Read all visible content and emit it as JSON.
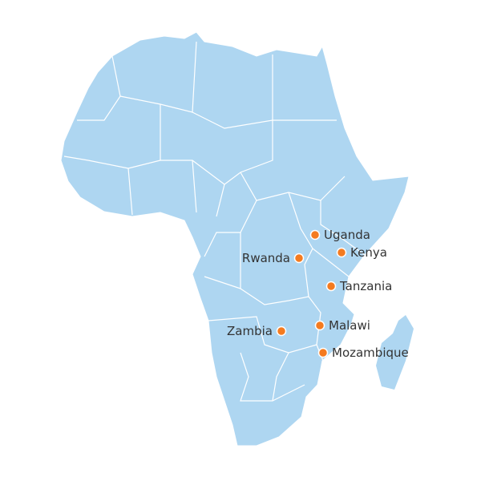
{
  "colors": {
    "land": "#aed6f1",
    "border": "#ffffff",
    "marker": "#f47b20",
    "text": "#333333"
  },
  "markers": [
    {
      "country": "Uganda"
    },
    {
      "country": "Kenya"
    },
    {
      "country": "Rwanda"
    },
    {
      "country": "Tanzania"
    },
    {
      "country": "Malawi"
    },
    {
      "country": "Zambia"
    },
    {
      "country": "Mozambique"
    }
  ]
}
